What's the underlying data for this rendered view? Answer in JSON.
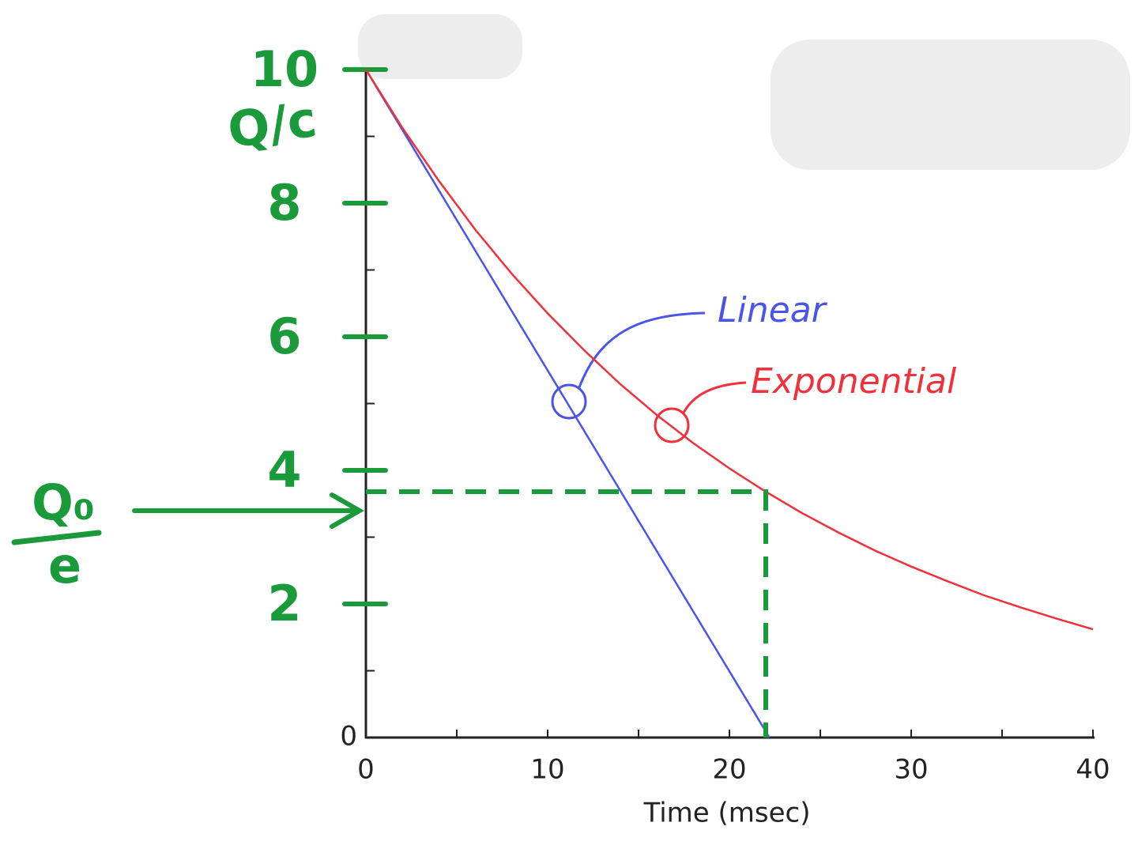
{
  "chart_data": {
    "type": "line",
    "x_label": "Time (msec)",
    "y_label": "Q/c",
    "xlim": [
      0,
      40
    ],
    "ylim": [
      0,
      10
    ],
    "xticks": [
      0,
      10,
      20,
      30,
      40
    ],
    "xminor_ticks": [
      5,
      15,
      25,
      35
    ],
    "yticks": [
      0
    ],
    "yminor_ticks": [
      1,
      3,
      5,
      7,
      9
    ],
    "handwritten_yticks": [
      2,
      4,
      6,
      8,
      10
    ],
    "series": [
      {
        "name": "Linear",
        "color": "#4a55e8",
        "x": [
          0,
          22.2
        ],
        "values": [
          10,
          0
        ]
      },
      {
        "name": "Exponential",
        "color": "#f0303a",
        "x": [
          0,
          2,
          4,
          6,
          8,
          10,
          12,
          14,
          16,
          18,
          20,
          22,
          24,
          26,
          28,
          30,
          32,
          34,
          36,
          38,
          40
        ],
        "values": [
          10,
          9.13,
          8.34,
          7.61,
          6.95,
          6.35,
          5.8,
          5.29,
          4.83,
          4.41,
          4.03,
          3.68,
          3.36,
          3.07,
          2.8,
          2.56,
          2.34,
          2.13,
          1.95,
          1.78,
          1.62
        ]
      }
    ],
    "reference": {
      "numerator": "Q₀",
      "denominator": "e",
      "x": 22,
      "y": 3.68,
      "color": "#1a9a3a"
    }
  }
}
